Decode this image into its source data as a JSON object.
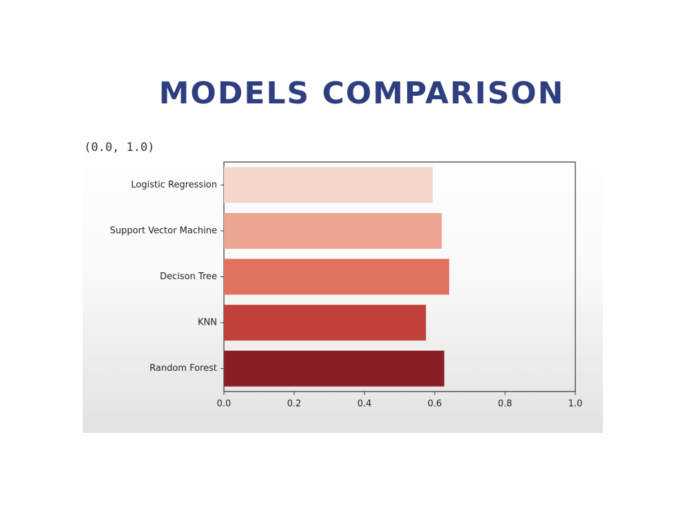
{
  "chart_data": {
    "type": "barh",
    "title": "MODELS COMPARISON",
    "annotation": "(0.0, 1.0)",
    "categories": [
      "Logistic Regression",
      "Support Vector Machine",
      "Decison Tree",
      "KNN",
      "Random Forest"
    ],
    "values": [
      0.594,
      0.62,
      0.641,
      0.575,
      0.627
    ],
    "colors": [
      "#f6d6cb",
      "#eda690",
      "#e0735f",
      "#c0403a",
      "#8b1f25"
    ],
    "xlim": [
      0,
      1
    ],
    "xticks": [
      {
        "value": 0,
        "label": "0.0"
      },
      0.2,
      0.4,
      0.6,
      0.8,
      {
        "value": 1,
        "label": "1.0"
      }
    ]
  }
}
